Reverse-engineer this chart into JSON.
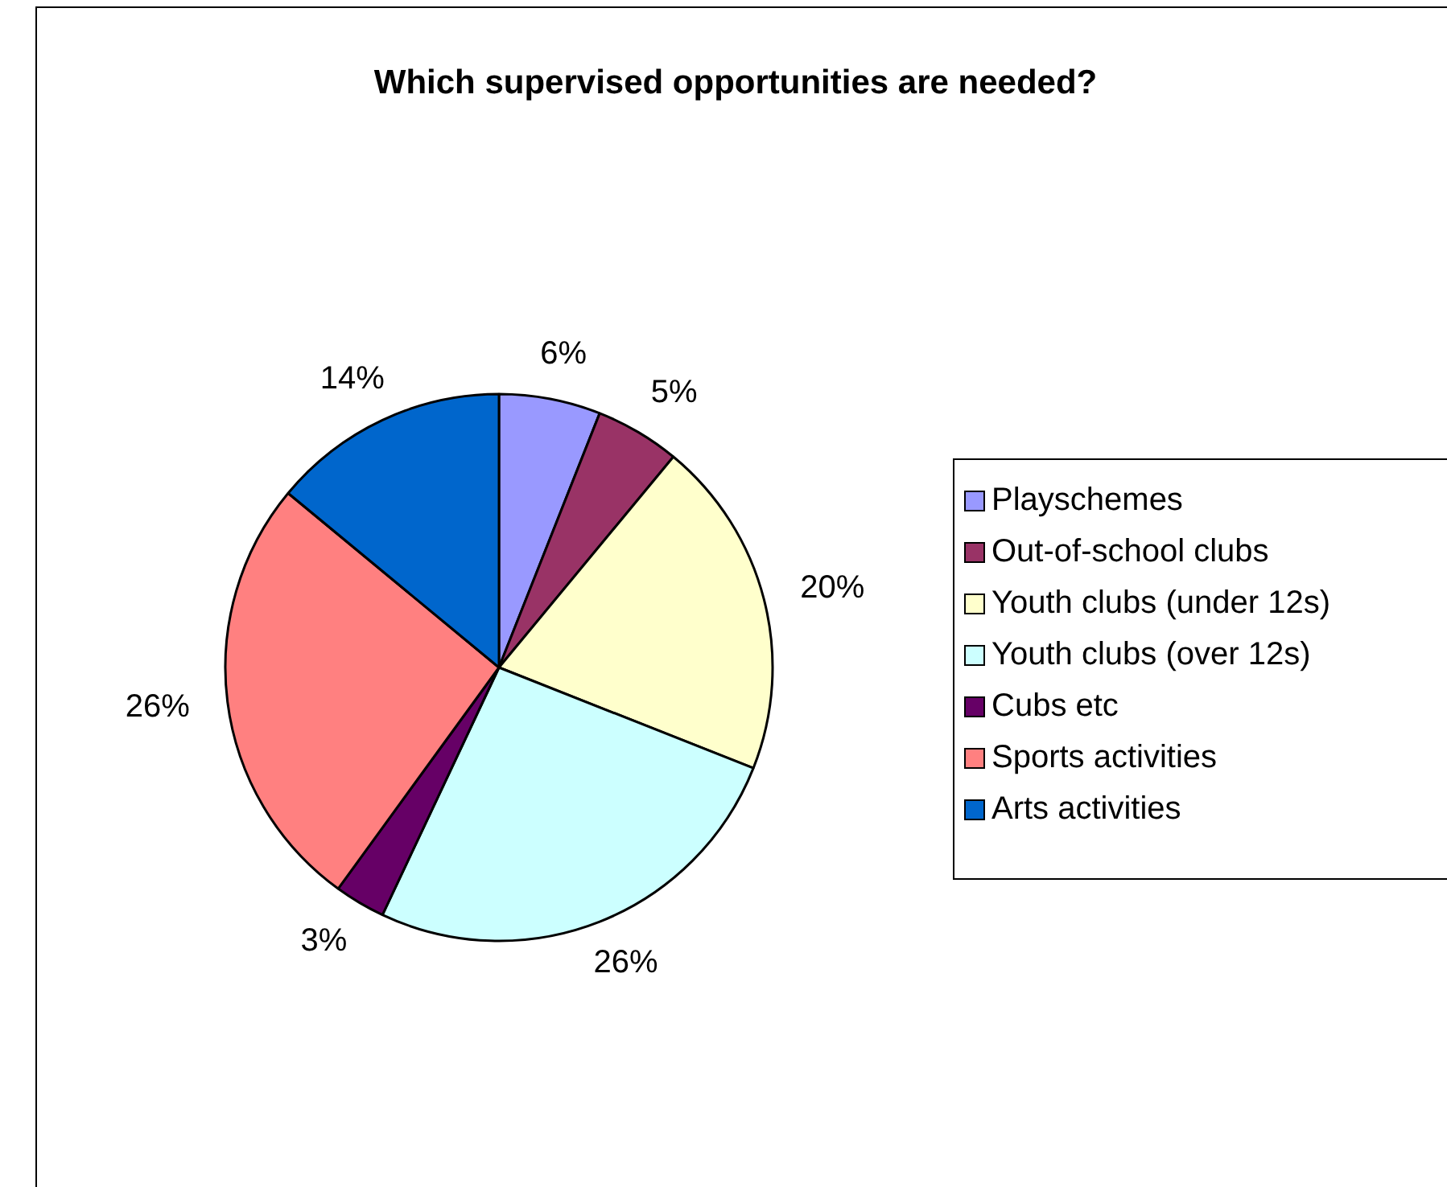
{
  "chart_data": {
    "type": "pie",
    "title": "Which supervised opportunities are needed?",
    "categories": [
      "Playschemes",
      "Out-of-school clubs",
      "Youth clubs (under 12s)",
      "Youth clubs (over 12s)",
      "Cubs etc",
      "Sports activities",
      "Arts activities"
    ],
    "values": [
      6,
      5,
      20,
      26,
      3,
      26,
      14
    ],
    "colors": [
      "#9999ff",
      "#993366",
      "#ffffcc",
      "#ccffff",
      "#660066",
      "#ff8080",
      "#0066cc"
    ],
    "value_labels": [
      "6%",
      "5%",
      "20%",
      "26%",
      "3%",
      "26%",
      "14%"
    ],
    "legend": "right"
  }
}
